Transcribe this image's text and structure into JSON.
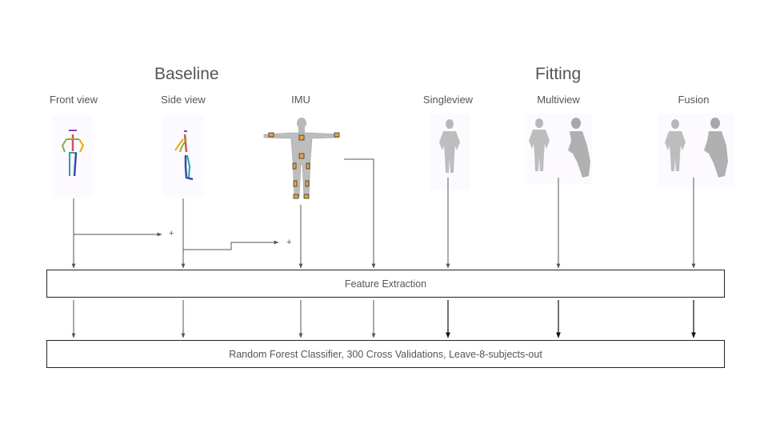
{
  "groups": {
    "baseline": "Baseline",
    "fitting": "Fitting"
  },
  "columns": {
    "front_view": "Front view",
    "side_view": "Side view",
    "imu": "IMU",
    "singleview": "Singleview",
    "multiview": "Multiview",
    "fusion": "Fusion"
  },
  "combine_symbol": "+",
  "stages": {
    "feature_extraction": "Feature Extraction",
    "classifier": "Random Forest Classifier, 300 Cross Validations, Leave-8-subjects-out"
  },
  "colors": {
    "line": "#555555",
    "imu_sensor": "#e8a33a",
    "mesh_gray": "#b8b8b8",
    "skeleton_red": "#d9534f",
    "skeleton_green": "#7cb342",
    "skeleton_purple": "#8e44ad",
    "skeleton_blue": "#3949ab",
    "skeleton_teal": "#26a69a"
  }
}
